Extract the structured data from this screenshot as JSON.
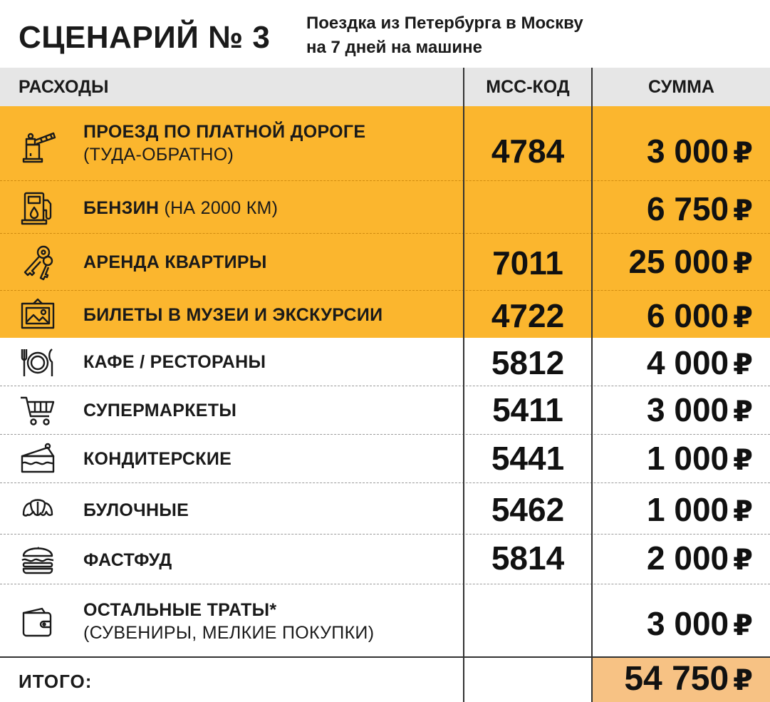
{
  "header": {
    "title": "СЦЕНАРИЙ № 3",
    "subtitle_line1": "Поездка из Петербурга в Москву",
    "subtitle_line2": "на 7 дней на машине"
  },
  "columns": {
    "expenses": "РАСХОДЫ",
    "mcc": "МСС-КОД",
    "sum": "СУММА"
  },
  "currency": "₽",
  "colors": {
    "highlight": "#fbb62e",
    "header_bg": "#e6e6e6",
    "total_bg": "#f7c284"
  },
  "rows": [
    {
      "icon": "toll-barrier-icon",
      "label": "ПРОЕЗД ПО ПЛАТНОЙ ДОРОГЕ",
      "note": "(ТУДА-ОБРАТНО)",
      "mcc": "4784",
      "amount": "3 000"
    },
    {
      "icon": "fuel-pump-icon",
      "label": "БЕНЗИН",
      "note": "(НА 2000 КМ)",
      "mcc": "",
      "amount": "6 750"
    },
    {
      "icon": "keys-icon",
      "label": "АРЕНДА  КВАРТИРЫ",
      "note": "",
      "mcc": "7011",
      "amount": "25 000"
    },
    {
      "icon": "framed-picture-icon",
      "label": "БИЛЕТЫ В МУЗЕИ И ЭКСКУРСИИ",
      "note": "",
      "mcc": "4722",
      "amount": "6 000"
    },
    {
      "icon": "plate-cutlery-icon",
      "label": "КАФЕ / РЕСТОРАНЫ",
      "note": "",
      "mcc": "5812",
      "amount": "4 000"
    },
    {
      "icon": "shopping-cart-icon",
      "label": "СУПЕРМАРКЕТЫ",
      "note": "",
      "mcc": "5411",
      "amount": "3 000"
    },
    {
      "icon": "cake-slice-icon",
      "label": "КОНДИТЕРСКИЕ",
      "note": "",
      "mcc": "5441",
      "amount": "1 000"
    },
    {
      "icon": "croissant-icon",
      "label": "БУЛОЧНЫЕ",
      "note": "",
      "mcc": "5462",
      "amount": "1 000"
    },
    {
      "icon": "burger-icon",
      "label": "ФАСТФУД",
      "note": "",
      "mcc": "5814",
      "amount": "2 000"
    },
    {
      "icon": "wallet-icon",
      "label": "ОСТАЛЬНЫЕ ТРАТЫ*",
      "note": "(СУВЕНИРЫ, МЕЛКИЕ ПОКУПКИ)",
      "mcc": "",
      "amount": "3 000"
    }
  ],
  "total": {
    "label": "ИТОГО:",
    "amount": "54 750"
  }
}
